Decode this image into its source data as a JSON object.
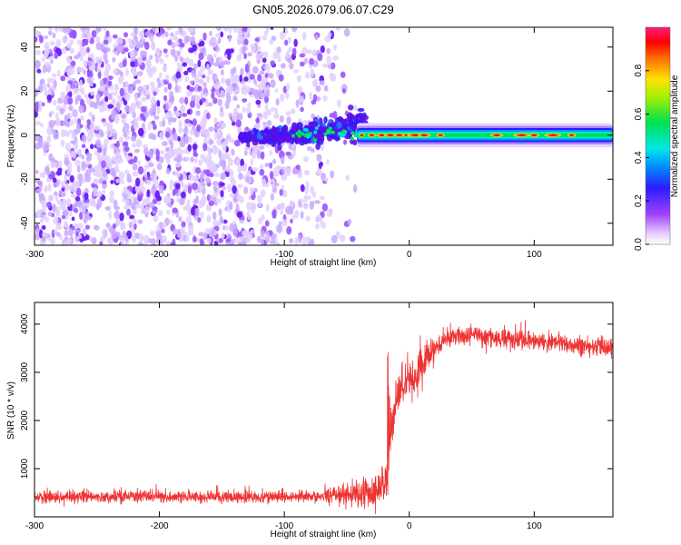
{
  "figure": {
    "title": "GN05.2026.079.06.07.C29"
  },
  "chart_data": [
    {
      "type": "heatmap",
      "xlabel": "Height of straight line (km)",
      "ylabel": "Frequency (Hz)",
      "xlim": [
        -300,
        163
      ],
      "ylim": [
        -50,
        49
      ],
      "xticks": [
        -300,
        -200,
        -100,
        0,
        100
      ],
      "yticks": [
        -40,
        -20,
        0,
        20,
        40
      ],
      "colorbar": {
        "label": "Normalized spectral amplitude",
        "range": [
          0,
          1
        ],
        "ticks": [
          "0.0",
          "0.2",
          "0.4",
          "0.6",
          "0.8"
        ]
      },
      "features": {
        "noise_region_km": [
          -300,
          -40
        ],
        "signal_band_hz": [
          -3,
          3
        ],
        "dispersive_ridge_km": [
          -135,
          -35
        ]
      }
    },
    {
      "type": "line",
      "xlabel": "Height of straight line (km)",
      "ylabel": "SNR (10 * v/v)",
      "xlim": [
        -300,
        163
      ],
      "ylim": [
        0,
        4450
      ],
      "xticks": [
        -300,
        -200,
        -100,
        0,
        100
      ],
      "yticks": [
        1000,
        2000,
        3000,
        4000
      ],
      "series": [
        {
          "name": "SNR",
          "color": "#ee3333",
          "x": [
            -300,
            -250,
            -200,
            -150,
            -100,
            -60,
            -40,
            -30,
            -25,
            -20,
            -17,
            -15,
            -12,
            -10,
            -5,
            0,
            5,
            10,
            15,
            20,
            25,
            30,
            40,
            50,
            60,
            80,
            100,
            120,
            140,
            163
          ],
          "y": [
            420,
            410,
            430,
            410,
            420,
            440,
            470,
            500,
            560,
            650,
            900,
            1700,
            2300,
            2500,
            2700,
            2850,
            2900,
            3150,
            3350,
            3500,
            3600,
            3700,
            3750,
            3800,
            3750,
            3700,
            3650,
            3600,
            3550,
            3500
          ]
        }
      ]
    }
  ]
}
